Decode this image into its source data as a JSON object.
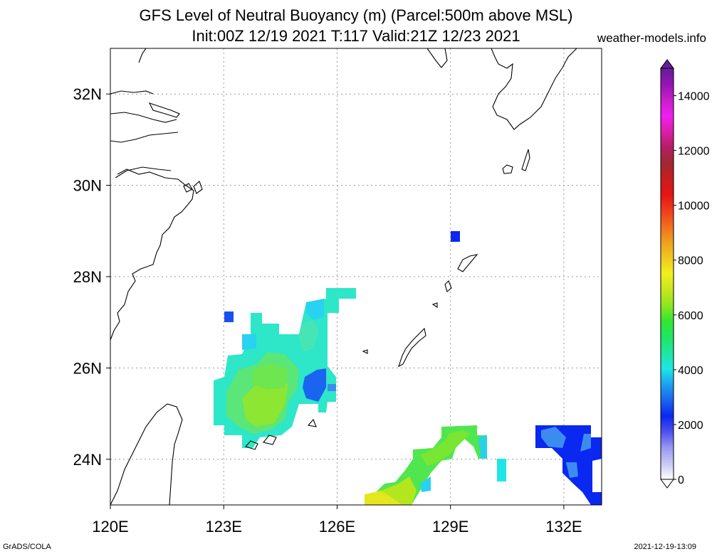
{
  "title_line1": "GFS Level of Neutral Buoyancy (m) (Parcel:500m above MSL)",
  "title_line2": "Init:00Z 12/19 2021 T:117 Valid:21Z 12/23 2021",
  "site": "weather-models.info",
  "credit": "GrADS/COLA",
  "timestamp": "2021-12-19-13:09",
  "map": {
    "lon_range": [
      120,
      133
    ],
    "lat_range": [
      23,
      33
    ],
    "lon_ticks": [
      {
        "v": 120,
        "label": "120E"
      },
      {
        "v": 123,
        "label": "123E"
      },
      {
        "v": 126,
        "label": "126E"
      },
      {
        "v": 129,
        "label": "129E"
      },
      {
        "v": 132,
        "label": "132E"
      }
    ],
    "lat_ticks": [
      {
        "v": 24,
        "label": "24N"
      },
      {
        "v": 26,
        "label": "26N"
      },
      {
        "v": 28,
        "label": "28N"
      },
      {
        "v": 30,
        "label": "30N"
      },
      {
        "v": 32,
        "label": "32N"
      }
    ],
    "grid": true
  },
  "colorbar": {
    "ticks": [
      {
        "v": 0,
        "label": "0"
      },
      {
        "v": 2000,
        "label": "2000"
      },
      {
        "v": 4000,
        "label": "4000"
      },
      {
        "v": 6000,
        "label": "6000"
      },
      {
        "v": 8000,
        "label": "8000"
      },
      {
        "v": 10000,
        "label": "10000"
      },
      {
        "v": 12000,
        "label": "12000"
      },
      {
        "v": 14000,
        "label": "14000"
      }
    ],
    "stops": [
      "#ffffff",
      "#c8c8f5",
      "#9898f0",
      "#5050f0",
      "#0a28f0",
      "#1a64f0",
      "#1ea0f0",
      "#1ee6e6",
      "#1ee6a0",
      "#1ee664",
      "#32e632",
      "#8ce61e",
      "#c8e61e",
      "#f0f01e",
      "#f0c81e",
      "#f0a01e",
      "#f06e1e",
      "#f03c1e",
      "#e61414",
      "#c81e1e",
      "#a02832",
      "#b41e64",
      "#dc1eaa",
      "#f01ef0",
      "#c81ec8",
      "#9614b4",
      "#641e96"
    ]
  },
  "data_regions": [
    {
      "name": "east-china-sea-cell",
      "color": "#3ce6a0"
    },
    {
      "name": "south-band",
      "color": "#8ce61e"
    },
    {
      "name": "southeast-cell",
      "color": "#0a28f0"
    }
  ]
}
